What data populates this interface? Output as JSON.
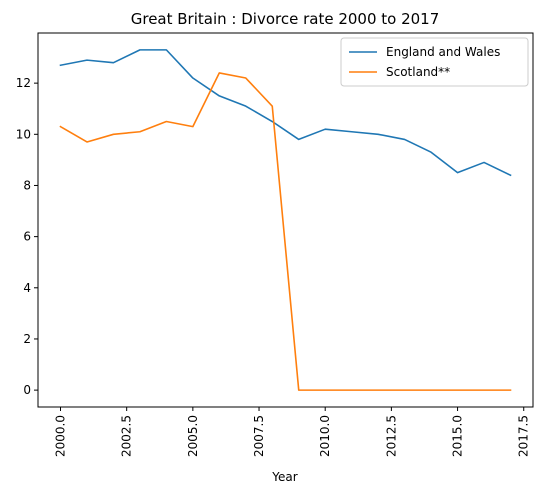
{
  "chart_data": {
    "type": "line",
    "title": "Great Britain : Divorce rate 2000 to 2017",
    "xlabel": "Year",
    "ylabel": "",
    "x": [
      2000,
      2001,
      2002,
      2003,
      2004,
      2005,
      2006,
      2007,
      2008,
      2009,
      2010,
      2011,
      2012,
      2013,
      2014,
      2015,
      2016,
      2017
    ],
    "xlim": [
      1999.15,
      2017.85
    ],
    "ylim": [
      -0.66,
      13.96
    ],
    "xticks": [
      2000.0,
      2002.5,
      2005.0,
      2007.5,
      2010.0,
      2012.5,
      2015.0,
      2017.5
    ],
    "xtick_labels": [
      "2000.0",
      "2002.5",
      "2005.0",
      "2007.5",
      "2010.0",
      "2012.5",
      "2015.0",
      "2017.5"
    ],
    "yticks": [
      0,
      2,
      4,
      6,
      8,
      10,
      12
    ],
    "ytick_labels": [
      "0",
      "2",
      "4",
      "6",
      "8",
      "10",
      "12"
    ],
    "grid": false,
    "legend_position": "top-right",
    "series": [
      {
        "name": "England and Wales",
        "color": "#1f77b4",
        "values": [
          12.7,
          12.9,
          12.8,
          13.3,
          13.3,
          12.2,
          11.5,
          11.1,
          10.5,
          9.8,
          10.2,
          10.1,
          10.0,
          9.8,
          9.3,
          8.5,
          8.9,
          8.4
        ]
      },
      {
        "name": "Scotland**",
        "color": "#ff7f0e",
        "values": [
          10.3,
          9.7,
          10.0,
          10.1,
          10.5,
          10.3,
          12.4,
          12.2,
          11.1,
          0.0,
          0.0,
          0.0,
          0.0,
          0.0,
          0.0,
          0.0,
          0.0,
          0.0
        ]
      }
    ]
  }
}
